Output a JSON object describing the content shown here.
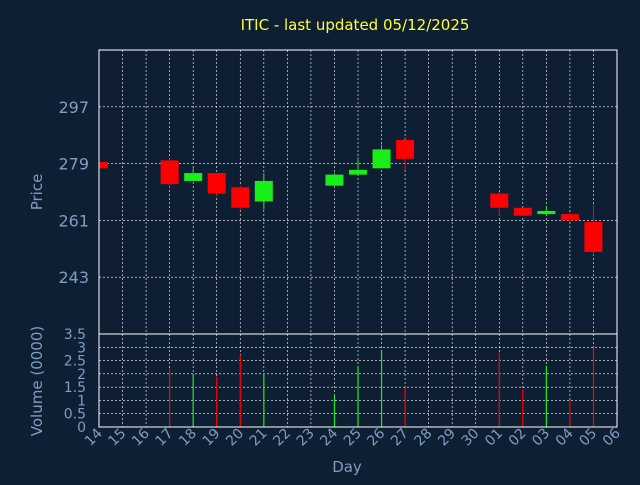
{
  "chart_data": [
    {
      "type": "candlestick",
      "title": "ITIC - last updated 05/12/2025",
      "ylabel": "Price",
      "ylim": [
        225,
        315
      ],
      "yticks": [
        243,
        261,
        279,
        297
      ],
      "up_color": "#19ee19",
      "down_color": "#ff0000",
      "categories": [
        "14",
        "15",
        "16",
        "17",
        "18",
        "19",
        "20",
        "21",
        "22",
        "23",
        "24",
        "25",
        "26",
        "27",
        "28",
        "29",
        "30",
        "01",
        "02",
        "03",
        "04",
        "05",
        "06"
      ],
      "candles": [
        {
          "day": "14",
          "open": 279.5,
          "close": 277.5,
          "high": 279.5,
          "low": 277.5
        },
        {
          "day": "17",
          "open": 280.0,
          "close": 272.5,
          "high": 280.5,
          "low": 271.5
        },
        {
          "day": "18",
          "open": 273.5,
          "close": 276.0,
          "high": 277.5,
          "low": 273.5
        },
        {
          "day": "19",
          "open": 276.0,
          "close": 269.5,
          "high": 276.0,
          "low": 268.5
        },
        {
          "day": "20",
          "open": 271.5,
          "close": 265.0,
          "high": 272.0,
          "low": 264.5
        },
        {
          "day": "21",
          "open": 267.0,
          "close": 273.5,
          "high": 276.0,
          "low": 264.5
        },
        {
          "day": "24",
          "open": 272.0,
          "close": 275.5,
          "high": 276.0,
          "low": 272.0
        },
        {
          "day": "25",
          "open": 275.5,
          "close": 277.0,
          "high": 281.0,
          "low": 275.5
        },
        {
          "day": "26",
          "open": 277.5,
          "close": 283.5,
          "high": 285.0,
          "low": 277.5
        },
        {
          "day": "27",
          "open": 286.5,
          "close": 280.5,
          "high": 286.5,
          "low": 277.0
        },
        {
          "day": "01",
          "open": 269.5,
          "close": 265.0,
          "high": 270.0,
          "low": 262.5
        },
        {
          "day": "02",
          "open": 265.0,
          "close": 262.5,
          "high": 265.0,
          "low": 262.5
        },
        {
          "day": "03",
          "open": 263.0,
          "close": 264.0,
          "high": 265.5,
          "low": 262.5
        },
        {
          "day": "04",
          "open": 263.0,
          "close": 261.0,
          "high": 263.5,
          "low": 260.5
        },
        {
          "day": "05",
          "open": 260.5,
          "close": 251.0,
          "high": 266.0,
          "low": 250.0
        }
      ]
    },
    {
      "type": "bar",
      "ylabel": "Volume (0000)",
      "xlabel": "Day",
      "ylim": [
        0,
        3.5
      ],
      "yticks": [
        "0",
        "0.5",
        "1",
        "1.5",
        "2",
        "2.5",
        "3",
        "3.5"
      ],
      "volumes": [
        {
          "day": "17",
          "value": 2.2,
          "direction": "down"
        },
        {
          "day": "18",
          "value": 2.0,
          "direction": "up"
        },
        {
          "day": "19",
          "value": 1.9,
          "direction": "down"
        },
        {
          "day": "20",
          "value": 2.7,
          "direction": "down"
        },
        {
          "day": "21",
          "value": 2.0,
          "direction": "up"
        },
        {
          "day": "24",
          "value": 1.2,
          "direction": "up"
        },
        {
          "day": "25",
          "value": 2.3,
          "direction": "up"
        },
        {
          "day": "26",
          "value": 2.9,
          "direction": "up"
        },
        {
          "day": "27",
          "value": 1.5,
          "direction": "down"
        },
        {
          "day": "01",
          "value": 2.8,
          "direction": "down"
        },
        {
          "day": "02",
          "value": 1.4,
          "direction": "down"
        },
        {
          "day": "03",
          "value": 2.3,
          "direction": "up"
        },
        {
          "day": "04",
          "value": 1.0,
          "direction": "down"
        },
        {
          "day": "05",
          "value": 3.0,
          "direction": "down"
        }
      ]
    }
  ],
  "colors": {
    "background": "#0f1f33",
    "title": "#ffff33",
    "axis_text": "#7f9cc1",
    "grid": "#ffffff",
    "frame": "#ffffff"
  }
}
